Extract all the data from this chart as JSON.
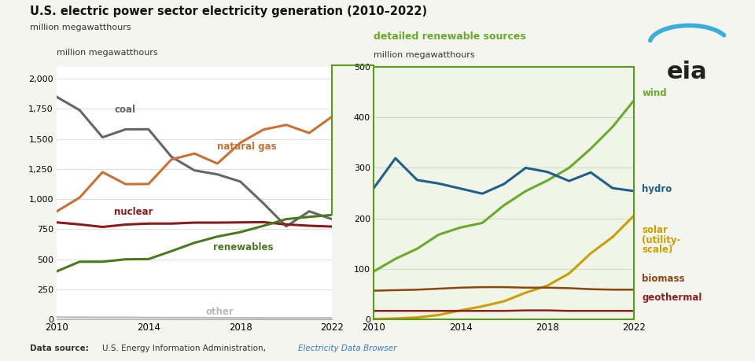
{
  "years": [
    2010,
    2011,
    2012,
    2013,
    2014,
    2015,
    2016,
    2017,
    2018,
    2019,
    2020,
    2021,
    2022
  ],
  "coal": [
    1850,
    1740,
    1514,
    1580,
    1581,
    1352,
    1239,
    1206,
    1146,
    966,
    774,
    899,
    833
  ],
  "natural_gas": [
    898,
    1013,
    1225,
    1125,
    1126,
    1330,
    1379,
    1296,
    1468,
    1578,
    1617,
    1550,
    1687
  ],
  "nuclear": [
    807,
    790,
    769,
    789,
    797,
    797,
    805,
    805,
    807,
    809,
    790,
    779,
    772
  ],
  "renewables": [
    400,
    480,
    480,
    500,
    502,
    568,
    637,
    689,
    726,
    778,
    834,
    853,
    869
  ],
  "other": [
    18,
    17,
    16,
    16,
    15,
    14,
    14,
    13,
    13,
    12,
    12,
    12,
    12
  ],
  "wind": [
    95,
    120,
    140,
    168,
    182,
    191,
    226,
    254,
    275,
    300,
    338,
    381,
    434
  ],
  "hydro": [
    260,
    319,
    276,
    269,
    259,
    249,
    268,
    300,
    292,
    274,
    291,
    260,
    254
  ],
  "solar": [
    1,
    2,
    4,
    9,
    18,
    26,
    36,
    53,
    67,
    91,
    131,
    163,
    206
  ],
  "biomass": [
    57,
    58,
    59,
    61,
    63,
    64,
    64,
    63,
    63,
    62,
    60,
    59,
    59
  ],
  "geothermal": [
    17,
    17,
    17,
    17,
    17,
    17,
    17,
    18,
    18,
    17,
    17,
    17,
    17
  ],
  "coal_color": "#666666",
  "natural_gas_color": "#c87137",
  "nuclear_color": "#8b1a1a",
  "renewables_color": "#4a7a1e",
  "other_color": "#bbbbbb",
  "wind_color": "#6aaa2a",
  "hydro_color": "#1f5f8b",
  "solar_color": "#c8a000",
  "biomass_color": "#8b4513",
  "geothermal_color": "#8b2020",
  "title": "U.S. electric power sector electricity generation (2010–2022)",
  "ylabel_left": "million megawatthours",
  "ylabel_right": "million megawatthours",
  "right_title": "detailed renewable sources",
  "background_color": "#f5f5f0",
  "plot_bg": "#ffffff",
  "right_bg": "#f0f5e8",
  "bracket_color": "#5a9a1a"
}
